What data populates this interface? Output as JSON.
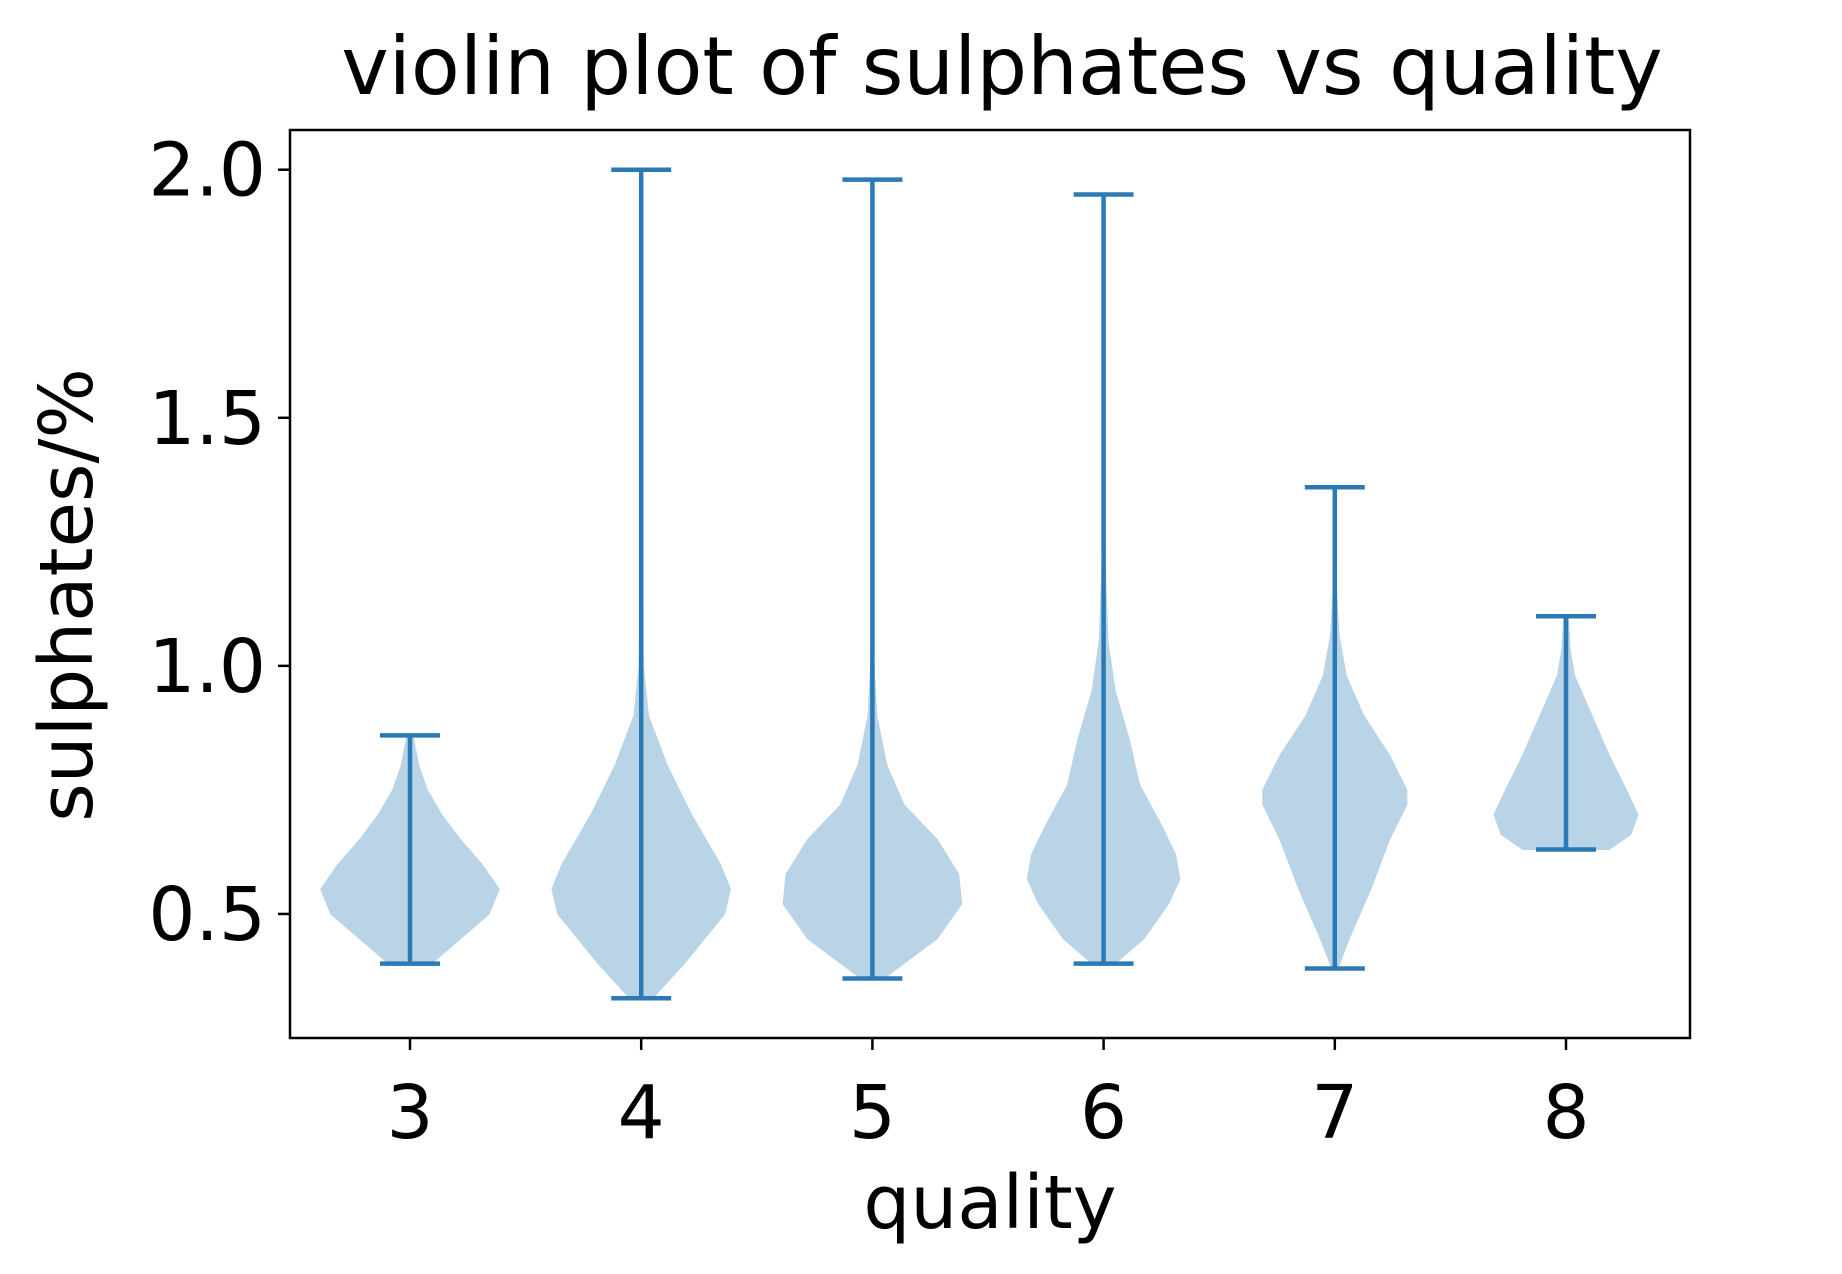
{
  "chart_data": {
    "type": "violin",
    "title": "violin plot of sulphates vs quality",
    "xlabel": "quality",
    "ylabel": "sulphates/%",
    "categories": [
      "3",
      "4",
      "5",
      "6",
      "7",
      "8"
    ],
    "x_ticks": [
      "3",
      "4",
      "5",
      "6",
      "7",
      "8"
    ],
    "y_ticks": [
      "0.5",
      "1.0",
      "1.5",
      "2.0"
    ],
    "y_tick_values": [
      0.5,
      1.0,
      1.5,
      2.0
    ],
    "ylim": [
      0.25,
      2.08
    ],
    "grid": false,
    "legend": "none",
    "colors": {
      "violin_fill": "#b9d4e7",
      "whisker": "#2c7ab5",
      "axes": "#000000"
    },
    "series": [
      {
        "category": "3",
        "min": 0.4,
        "max": 0.86,
        "density": [
          [
            0.4,
            0.15
          ],
          [
            0.45,
            0.35
          ],
          [
            0.5,
            0.55
          ],
          [
            0.55,
            0.62
          ],
          [
            0.6,
            0.5
          ],
          [
            0.65,
            0.35
          ],
          [
            0.7,
            0.22
          ],
          [
            0.75,
            0.12
          ],
          [
            0.8,
            0.06
          ],
          [
            0.86,
            0.02
          ]
        ]
      },
      {
        "category": "4",
        "min": 0.33,
        "max": 2.0,
        "density": [
          [
            0.33,
            0.08
          ],
          [
            0.4,
            0.3
          ],
          [
            0.5,
            0.58
          ],
          [
            0.55,
            0.62
          ],
          [
            0.6,
            0.55
          ],
          [
            0.7,
            0.35
          ],
          [
            0.8,
            0.18
          ],
          [
            0.9,
            0.05
          ],
          [
            1.0,
            0.015
          ],
          [
            1.2,
            0.006
          ],
          [
            1.5,
            0.003
          ],
          [
            2.0,
            0.002
          ]
        ]
      },
      {
        "category": "5",
        "min": 0.37,
        "max": 1.98,
        "density": [
          [
            0.37,
            0.08
          ],
          [
            0.45,
            0.45
          ],
          [
            0.52,
            0.62
          ],
          [
            0.58,
            0.6
          ],
          [
            0.65,
            0.45
          ],
          [
            0.72,
            0.22
          ],
          [
            0.8,
            0.1
          ],
          [
            0.9,
            0.03
          ],
          [
            1.0,
            0.012
          ],
          [
            1.2,
            0.005
          ],
          [
            1.6,
            0.003
          ],
          [
            1.98,
            0.002
          ]
        ]
      },
      {
        "category": "6",
        "min": 0.4,
        "max": 1.95,
        "density": [
          [
            0.4,
            0.08
          ],
          [
            0.45,
            0.28
          ],
          [
            0.52,
            0.45
          ],
          [
            0.57,
            0.53
          ],
          [
            0.62,
            0.5
          ],
          [
            0.68,
            0.4
          ],
          [
            0.76,
            0.25
          ],
          [
            0.85,
            0.18
          ],
          [
            0.95,
            0.08
          ],
          [
            1.05,
            0.03
          ],
          [
            1.2,
            0.012
          ],
          [
            1.5,
            0.005
          ],
          [
            1.95,
            0.002
          ]
        ]
      },
      {
        "category": "7",
        "min": 0.39,
        "max": 1.36,
        "density": [
          [
            0.39,
            0.02
          ],
          [
            0.45,
            0.1
          ],
          [
            0.55,
            0.25
          ],
          [
            0.65,
            0.38
          ],
          [
            0.72,
            0.5
          ],
          [
            0.75,
            0.5
          ],
          [
            0.82,
            0.38
          ],
          [
            0.9,
            0.2
          ],
          [
            0.98,
            0.08
          ],
          [
            1.06,
            0.03
          ],
          [
            1.15,
            0.012
          ],
          [
            1.25,
            0.006
          ],
          [
            1.36,
            0.003
          ]
        ]
      },
      {
        "category": "8",
        "min": 0.63,
        "max": 1.1,
        "density": [
          [
            0.63,
            0.3
          ],
          [
            0.66,
            0.45
          ],
          [
            0.7,
            0.5
          ],
          [
            0.75,
            0.42
          ],
          [
            0.82,
            0.3
          ],
          [
            0.9,
            0.18
          ],
          [
            0.98,
            0.06
          ],
          [
            1.03,
            0.03
          ],
          [
            1.1,
            0.015
          ]
        ]
      }
    ]
  }
}
